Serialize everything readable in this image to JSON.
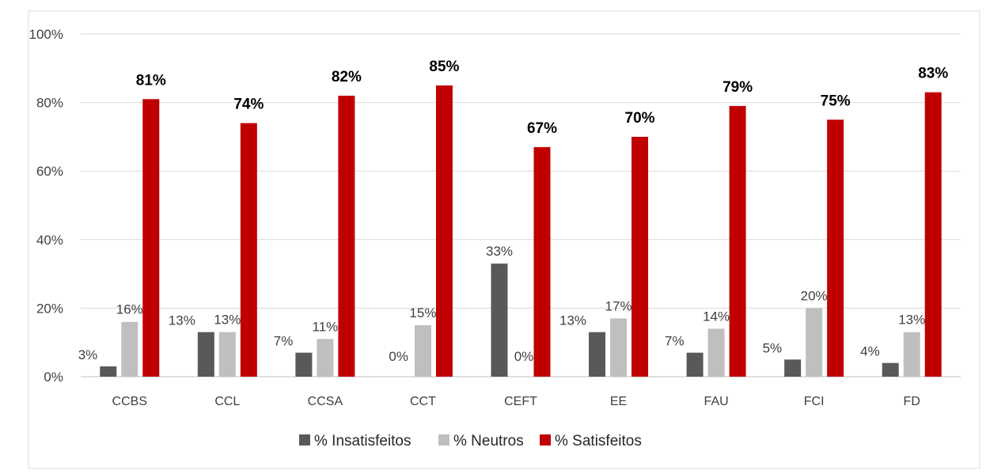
{
  "colors": {
    "insatisfeitos": "#595959",
    "neutros": "#BFBFBF",
    "satisfeitos": "#C00000",
    "grid": "#D9D9D9",
    "text": "#404040",
    "label_bold": "#000000"
  },
  "chart_data": {
    "type": "bar",
    "categories": [
      "CCBS",
      "CCL",
      "CCSA",
      "CCT",
      "CEFT",
      "EE",
      "FAU",
      "FCI",
      "FD"
    ],
    "ylim": [
      0,
      100
    ],
    "yticks": [
      "0%",
      "20%",
      "40%",
      "60%",
      "80%",
      "100%"
    ],
    "grid": true,
    "legend_position": "bottom",
    "series": [
      {
        "name": "% Insatisfeitos",
        "values": [
          3,
          13,
          7,
          0,
          33,
          13,
          7,
          5,
          4
        ],
        "labels": [
          "3%",
          "13%",
          "7%",
          "0%",
          "33%",
          "13%",
          "7%",
          "5%",
          "4%"
        ]
      },
      {
        "name": "% Neutros",
        "values": [
          16,
          13,
          11,
          15,
          0,
          17,
          14,
          20,
          13
        ],
        "labels": [
          "16%",
          "13%",
          "11%",
          "15%",
          "0%",
          "17%",
          "14%",
          "20%",
          "13%"
        ]
      },
      {
        "name": "% Satisfeitos",
        "values": [
          81,
          74,
          82,
          85,
          67,
          70,
          79,
          75,
          83
        ],
        "labels": [
          "81%",
          "74%",
          "82%",
          "85%",
          "67%",
          "70%",
          "79%",
          "75%",
          "83%"
        ]
      }
    ]
  }
}
